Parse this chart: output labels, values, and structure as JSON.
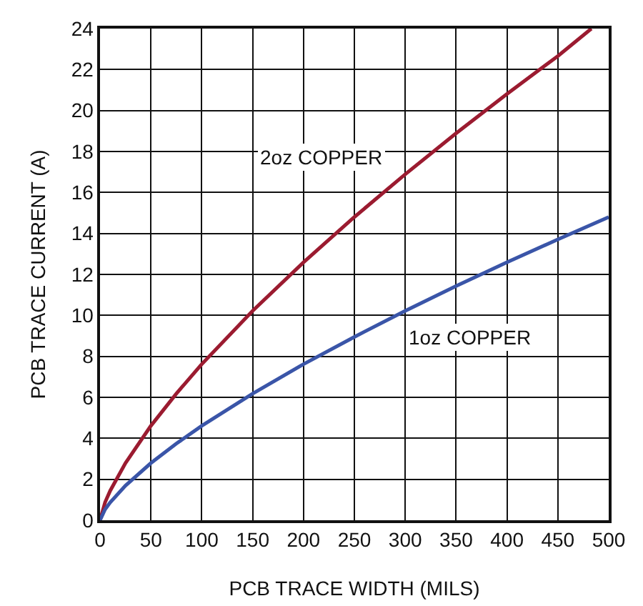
{
  "chart_data": {
    "type": "line",
    "xlabel": "PCB TRACE WIDTH (MILS)",
    "ylabel": "PCB TRACE CURRENT (A)",
    "x": [
      0,
      5,
      10,
      25,
      50,
      75,
      100,
      150,
      200,
      250,
      300,
      350,
      400,
      450,
      500
    ],
    "series": [
      {
        "name": "2oz COPPER",
        "color": "#9b1b30",
        "x": [
          0,
          5,
          10,
          25,
          50,
          75,
          100,
          150,
          200,
          250,
          300,
          350,
          400,
          450,
          483
        ],
        "values": [
          0,
          0.88,
          1.44,
          2.79,
          4.61,
          6.18,
          7.62,
          10.22,
          12.59,
          14.8,
          16.89,
          18.89,
          20.81,
          22.66,
          24
        ]
      },
      {
        "name": "1oz COPPER",
        "color": "#3a55a8",
        "values": [
          0,
          0.53,
          0.87,
          1.69,
          2.79,
          3.74,
          4.61,
          6.18,
          7.62,
          8.95,
          10.22,
          11.43,
          12.59,
          13.71,
          14.8
        ]
      }
    ],
    "xlim": [
      0,
      500
    ],
    "xticks": [
      0,
      50,
      100,
      150,
      200,
      250,
      300,
      350,
      400,
      450,
      500
    ],
    "ylim": [
      0,
      24
    ],
    "yticks": [
      0,
      2,
      4,
      6,
      8,
      10,
      12,
      14,
      16,
      18,
      20,
      22,
      24
    ],
    "grid": true,
    "legend": false,
    "marker": "none",
    "line_style": "solid"
  }
}
